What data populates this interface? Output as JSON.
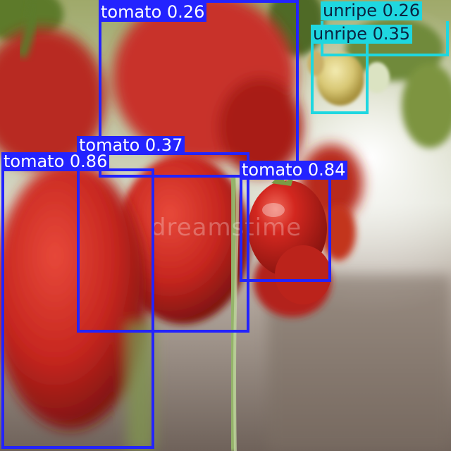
{
  "image": {
    "watermark": "dreamstime"
  },
  "colors": {
    "tomato_box": "#2323ff",
    "unripe_box": "#1fd7e0",
    "unripe_label_text": "#0a2340",
    "tomato_label_text": "#ffffff"
  },
  "detections": [
    {
      "label": "tomato",
      "score": "0.26",
      "caption": "tomato 0.26",
      "class": "tomato"
    },
    {
      "label": "unripe",
      "score": "0.26",
      "caption": "unripe 0.26",
      "class": "unripe"
    },
    {
      "label": "unripe",
      "score": "0.35",
      "caption": "unripe 0.35",
      "class": "unripe"
    },
    {
      "label": "tomato",
      "score": "0.37",
      "caption": "tomato 0.37",
      "class": "tomato"
    },
    {
      "label": "tomato",
      "score": "0.86",
      "caption": "tomato 0.86",
      "class": "tomato"
    },
    {
      "label": "tomato",
      "score": "0.84",
      "caption": "tomato 0.84",
      "class": "tomato"
    }
  ]
}
